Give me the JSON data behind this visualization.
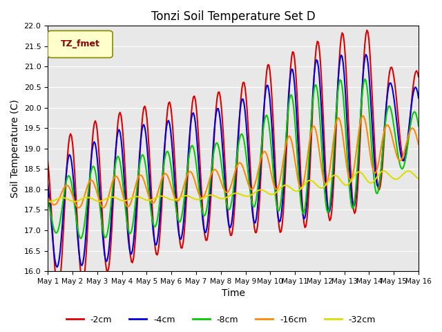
{
  "title": "Tonzi Soil Temperature Set D",
  "xlabel": "Time",
  "ylabel": "Soil Temperature (C)",
  "xlim": [
    0,
    15
  ],
  "ylim": [
    16.0,
    22.0
  ],
  "yticks": [
    16.0,
    16.5,
    17.0,
    17.5,
    18.0,
    18.5,
    19.0,
    19.5,
    20.0,
    20.5,
    21.0,
    21.5,
    22.0
  ],
  "xtick_labels": [
    "May 1",
    "May 2",
    "May 3",
    "May 4",
    "May 5",
    "May 6",
    "May 7",
    "May 8",
    "May 9",
    "May 10",
    "May 11",
    "May 12",
    "May 13",
    "May 14",
    "May 15",
    "May 16"
  ],
  "colors": {
    "-2cm": "#dd0000",
    "-4cm": "#0000dd",
    "-8cm": "#00cc00",
    "-16cm": "#ff8800",
    "-32cm": "#dddd00"
  },
  "legend_label": "TZ_fmet",
  "legend_box_color": "#ffffcc",
  "legend_text_color": "#880000",
  "background_color": "#e8e8e8",
  "linewidth": 1.5,
  "num_points_per_day": 24,
  "days": 15,
  "series": {
    "-2cm": {
      "base_trend": [
        17.2,
        17.5,
        17.8,
        18.0,
        18.2,
        18.3,
        18.5,
        18.6,
        18.8,
        19.0,
        19.2,
        19.4,
        19.6,
        19.7,
        19.8,
        19.8
      ],
      "amplitude_trend": [
        1.7,
        1.9,
        1.9,
        1.9,
        1.85,
        1.85,
        1.8,
        1.8,
        1.85,
        2.1,
        2.2,
        2.25,
        2.25,
        2.2,
        1.1,
        1.1
      ]
    },
    "-4cm": {
      "base_trend": [
        17.3,
        17.5,
        17.7,
        17.9,
        18.1,
        18.2,
        18.4,
        18.5,
        18.7,
        18.9,
        19.1,
        19.3,
        19.4,
        19.5,
        19.6,
        19.6
      ],
      "amplitude_trend": [
        1.2,
        1.4,
        1.5,
        1.6,
        1.5,
        1.5,
        1.5,
        1.5,
        1.55,
        1.7,
        1.9,
        1.9,
        1.9,
        1.8,
        0.9,
        0.9
      ]
    },
    "-8cm": {
      "base_trend": [
        17.5,
        17.6,
        17.7,
        17.85,
        17.95,
        18.05,
        18.2,
        18.3,
        18.5,
        18.7,
        18.9,
        19.0,
        19.1,
        19.15,
        19.2,
        19.2
      ],
      "amplitude_trend": [
        0.5,
        0.8,
        0.9,
        1.0,
        0.9,
        0.9,
        0.9,
        0.85,
        0.9,
        1.2,
        1.5,
        1.6,
        1.6,
        1.55,
        0.7,
        0.7
      ]
    },
    "-16cm": {
      "base_trend": [
        17.8,
        17.85,
        17.9,
        17.95,
        18.0,
        18.05,
        18.1,
        18.2,
        18.35,
        18.5,
        18.7,
        18.85,
        19.0,
        19.05,
        19.1,
        19.1
      ],
      "amplitude_trend": [
        0.15,
        0.3,
        0.35,
        0.4,
        0.35,
        0.35,
        0.35,
        0.3,
        0.35,
        0.5,
        0.7,
        0.75,
        0.8,
        0.75,
        0.4,
        0.4
      ]
    },
    "-32cm": {
      "base_trend": [
        17.75,
        17.75,
        17.76,
        17.77,
        17.78,
        17.79,
        17.8,
        17.82,
        17.88,
        17.95,
        18.05,
        18.15,
        18.25,
        18.3,
        18.35,
        18.35
      ],
      "amplitude_trend": [
        0.05,
        0.05,
        0.05,
        0.05,
        0.05,
        0.05,
        0.05,
        0.05,
        0.05,
        0.08,
        0.1,
        0.12,
        0.15,
        0.15,
        0.1,
        0.1
      ]
    }
  }
}
